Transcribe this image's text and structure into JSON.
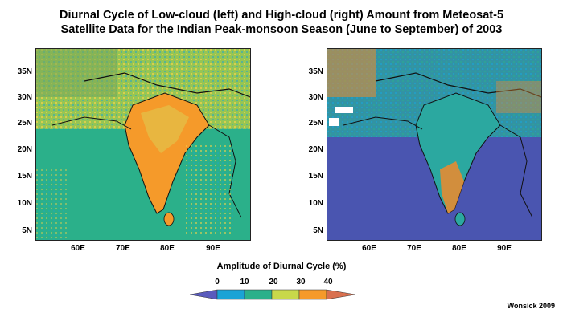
{
  "title": {
    "line1": "Diurnal Cycle of Low-cloud (left) and High-cloud (right) Amount from Meteosat-5",
    "line2": "Satellite Data for the Indian Peak-monsoon Season (June to September) of 2003"
  },
  "axes": {
    "latitude_ticks": [
      "35N",
      "30N",
      "25N",
      "20N",
      "15N",
      "10N",
      "5N"
    ],
    "longitude_ticks": [
      "60E",
      "70E",
      "80E",
      "90E"
    ]
  },
  "colorbar": {
    "title": "Amplitude of Diurnal Cycle (%)",
    "ticks": [
      "0",
      "10",
      "20",
      "30",
      "40"
    ],
    "colors": [
      "#5a5bbd",
      "#1aa3d6",
      "#2bb08a",
      "#c8d84a",
      "#f59a2a",
      "#d9704f"
    ]
  },
  "panels": [
    {
      "name": "low-cloud",
      "ocean_color": "#2bb08a",
      "land_color": "#a9c94a",
      "hotspot_color": "#f59a2a"
    },
    {
      "name": "high-cloud",
      "ocean_color": "#4a55b0",
      "land_color": "#2ba8a0",
      "hotspot_color": "#f08a2c"
    }
  ],
  "credit": "Wonsick 2009"
}
